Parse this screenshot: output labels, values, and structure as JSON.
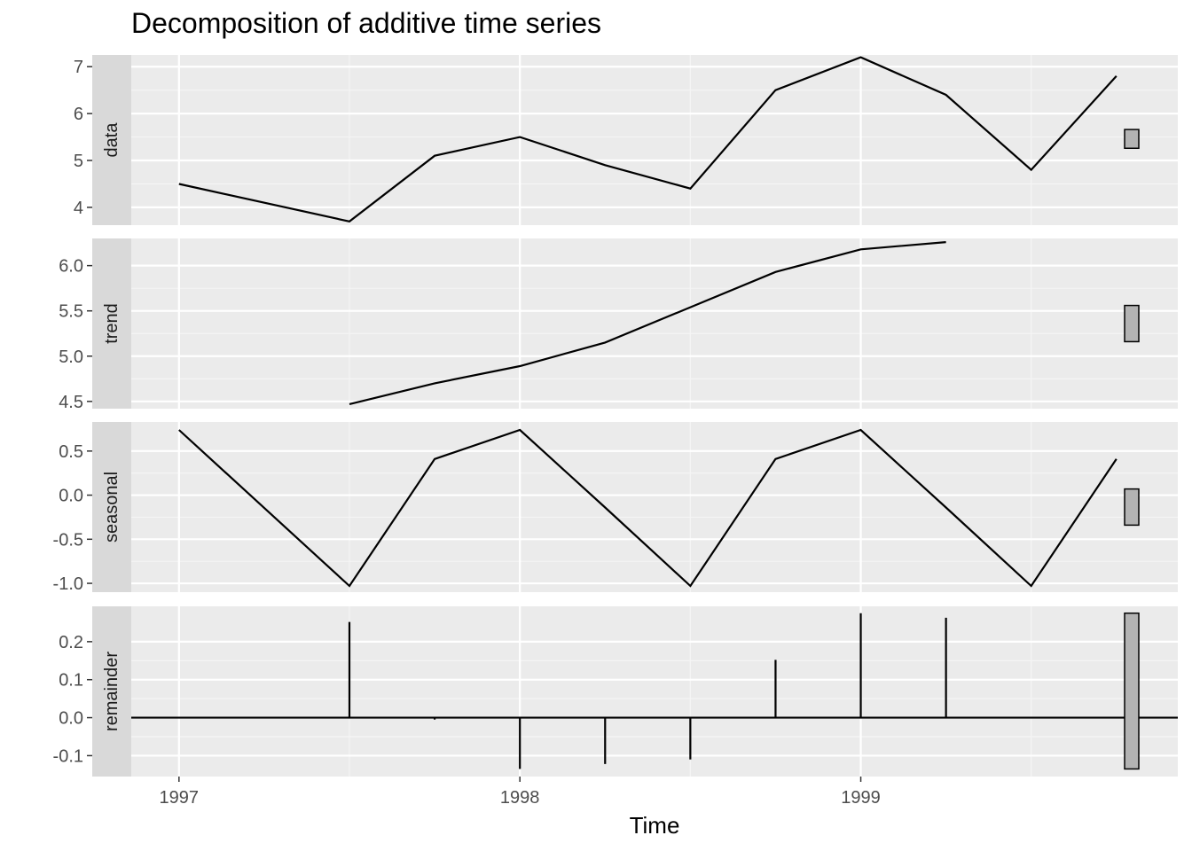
{
  "title": "Decomposition of additive time series",
  "chart_data": {
    "type": "line",
    "title": "Decomposition of additive time series",
    "xlabel": "Time",
    "xlim": [
      1996.86,
      1999.93
    ],
    "x": [
      1997.0,
      1997.25,
      1997.5,
      1997.75,
      1998.0,
      1998.25,
      1998.5,
      1998.75,
      1999.0,
      1999.25,
      1999.5,
      1999.75
    ],
    "x_ticks": [
      1997,
      1998,
      1999
    ],
    "x_tick_labels": [
      "1997",
      "1998",
      "1999"
    ],
    "grid": true,
    "panels": [
      {
        "name": "data",
        "type": "line",
        "ylim": [
          3.62,
          7.25
        ],
        "y_ticks": [
          4,
          5,
          6,
          7
        ],
        "y_tick_labels": [
          "4",
          "5",
          "6",
          "7"
        ],
        "values": [
          4.5,
          null,
          3.7,
          5.1,
          5.5,
          4.9,
          4.4,
          6.5,
          7.2,
          6.4,
          4.8,
          6.8
        ],
        "range_bar": [
          5.26,
          5.66
        ]
      },
      {
        "name": "trend",
        "type": "line",
        "ylim": [
          4.42,
          6.3
        ],
        "y_ticks": [
          4.5,
          5.0,
          5.5,
          6.0
        ],
        "y_tick_labels": [
          "4.5",
          "5.0",
          "5.5",
          "6.0"
        ],
        "values": [
          null,
          null,
          4.47,
          4.7,
          4.89,
          5.15,
          5.54,
          5.93,
          6.18,
          6.26,
          null,
          null
        ],
        "range_bar": [
          5.16,
          5.56
        ]
      },
      {
        "name": "seasonal",
        "type": "line",
        "ylim": [
          -1.1,
          0.83
        ],
        "y_ticks": [
          -1.0,
          -0.5,
          0.0,
          0.5
        ],
        "y_tick_labels": [
          "-1.0",
          "-0.5",
          "0.0",
          "0.5"
        ],
        "values": [
          0.74,
          null,
          -1.03,
          0.41,
          0.74,
          -0.14,
          -1.03,
          0.41,
          0.74,
          -0.14,
          -1.03,
          0.41
        ],
        "range_bar": [
          -0.34,
          0.07
        ]
      },
      {
        "name": "remainder",
        "type": "bar",
        "ylim": [
          -0.155,
          0.293
        ],
        "y_ticks": [
          -0.1,
          0.0,
          0.1,
          0.2
        ],
        "y_tick_labels": [
          "-0.1",
          "0.0",
          "0.1",
          "0.2"
        ],
        "values": [
          0,
          null,
          0.252,
          -0.005,
          -0.135,
          -0.122,
          -0.11,
          0.152,
          0.275,
          0.263,
          0,
          0
        ],
        "range_bar": [
          -0.135,
          0.275
        ]
      }
    ]
  }
}
